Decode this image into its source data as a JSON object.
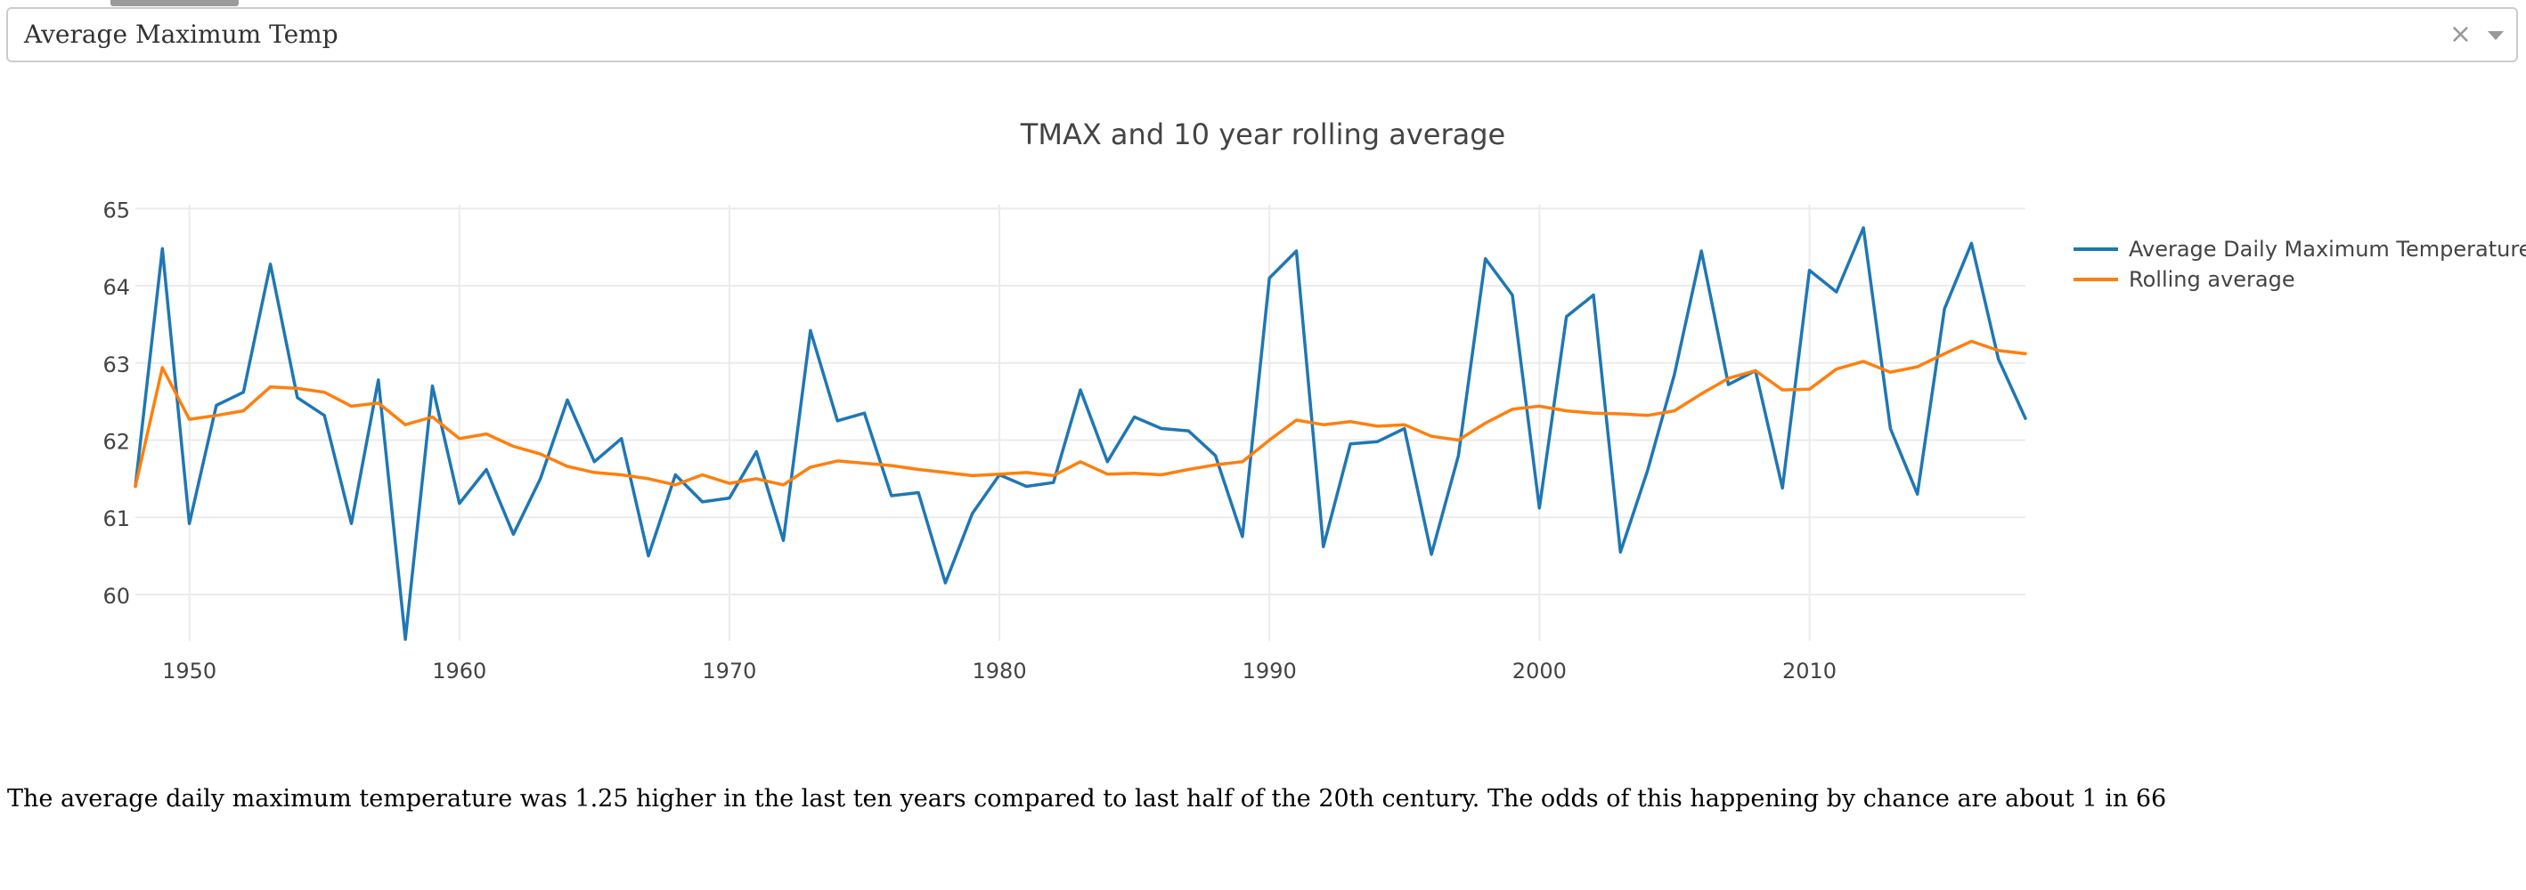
{
  "dropdown": {
    "selected": "Average Maximum Temp",
    "clear_symbol": "×"
  },
  "summary": "The average daily maximum temperature was 1.25 higher in the last ten years compared to last half of the 20th century. The odds of this happening by chance are about 1 in 66",
  "chart_data": {
    "type": "line",
    "title": "TMAX and 10 year rolling average",
    "xlabel": "",
    "ylabel": "",
    "xlim": [
      1948,
      2018
    ],
    "ylim": [
      59.4,
      65.05
    ],
    "x_ticks": [
      1950,
      1960,
      1970,
      1980,
      1990,
      2000,
      2010
    ],
    "y_ticks": [
      60,
      61,
      62,
      63,
      64,
      65
    ],
    "grid": true,
    "legend_position": "top-right",
    "x": [
      1948,
      1949,
      1950,
      1951,
      1952,
      1953,
      1954,
      1955,
      1956,
      1957,
      1958,
      1959,
      1960,
      1961,
      1962,
      1963,
      1964,
      1965,
      1966,
      1967,
      1968,
      1969,
      1970,
      1971,
      1972,
      1973,
      1974,
      1975,
      1976,
      1977,
      1978,
      1979,
      1980,
      1981,
      1982,
      1983,
      1984,
      1985,
      1986,
      1987,
      1988,
      1989,
      1990,
      1991,
      1992,
      1993,
      1994,
      1995,
      1996,
      1997,
      1998,
      1999,
      2000,
      2001,
      2002,
      2003,
      2004,
      2005,
      2006,
      2007,
      2008,
      2009,
      2010,
      2011,
      2012,
      2013,
      2014,
      2015,
      2016,
      2017,
      2018
    ],
    "series": [
      {
        "name": "Average Daily Maximum Temperature",
        "color": "#1f77b4",
        "values": [
          61.4,
          64.48,
          60.92,
          62.45,
          62.62,
          64.28,
          62.55,
          62.32,
          60.92,
          62.78,
          59.42,
          62.7,
          61.18,
          61.62,
          60.78,
          61.5,
          62.52,
          61.72,
          62.02,
          60.5,
          61.55,
          61.2,
          61.25,
          61.85,
          60.7,
          63.42,
          62.25,
          62.35,
          61.28,
          61.32,
          60.15,
          61.05,
          61.55,
          61.4,
          61.45,
          62.65,
          61.72,
          62.3,
          62.15,
          62.12,
          61.8,
          60.75,
          64.1,
          64.45,
          60.62,
          61.95,
          61.98,
          62.15,
          60.52,
          61.8,
          64.35,
          63.88,
          61.12,
          63.6,
          63.88,
          60.55,
          61.6,
          62.85,
          64.45,
          62.72,
          62.9,
          61.38,
          64.2,
          63.92,
          64.75,
          62.15,
          61.3,
          63.7,
          64.55,
          63.05,
          62.28
        ]
      },
      {
        "name": "Rolling average",
        "color": "#ff7f0e",
        "values": [
          61.4,
          62.94,
          62.27,
          62.32,
          62.38,
          62.69,
          62.67,
          62.62,
          62.44,
          62.48,
          62.2,
          62.3,
          62.02,
          62.08,
          61.92,
          61.82,
          61.66,
          61.58,
          61.55,
          61.5,
          61.42,
          61.55,
          61.44,
          61.5,
          61.42,
          61.65,
          61.73,
          61.7,
          61.67,
          61.62,
          61.58,
          61.54,
          61.56,
          61.58,
          61.54,
          61.72,
          61.56,
          61.57,
          61.55,
          61.62,
          61.68,
          61.72,
          62.0,
          62.26,
          62.2,
          62.24,
          62.18,
          62.2,
          62.05,
          62.0,
          62.22,
          62.4,
          62.44,
          62.38,
          62.35,
          62.34,
          62.32,
          62.38,
          62.6,
          62.8,
          62.9,
          62.65,
          62.66,
          62.92,
          63.02,
          62.88,
          62.95,
          63.12,
          63.28,
          63.16,
          63.12
        ]
      }
    ]
  }
}
